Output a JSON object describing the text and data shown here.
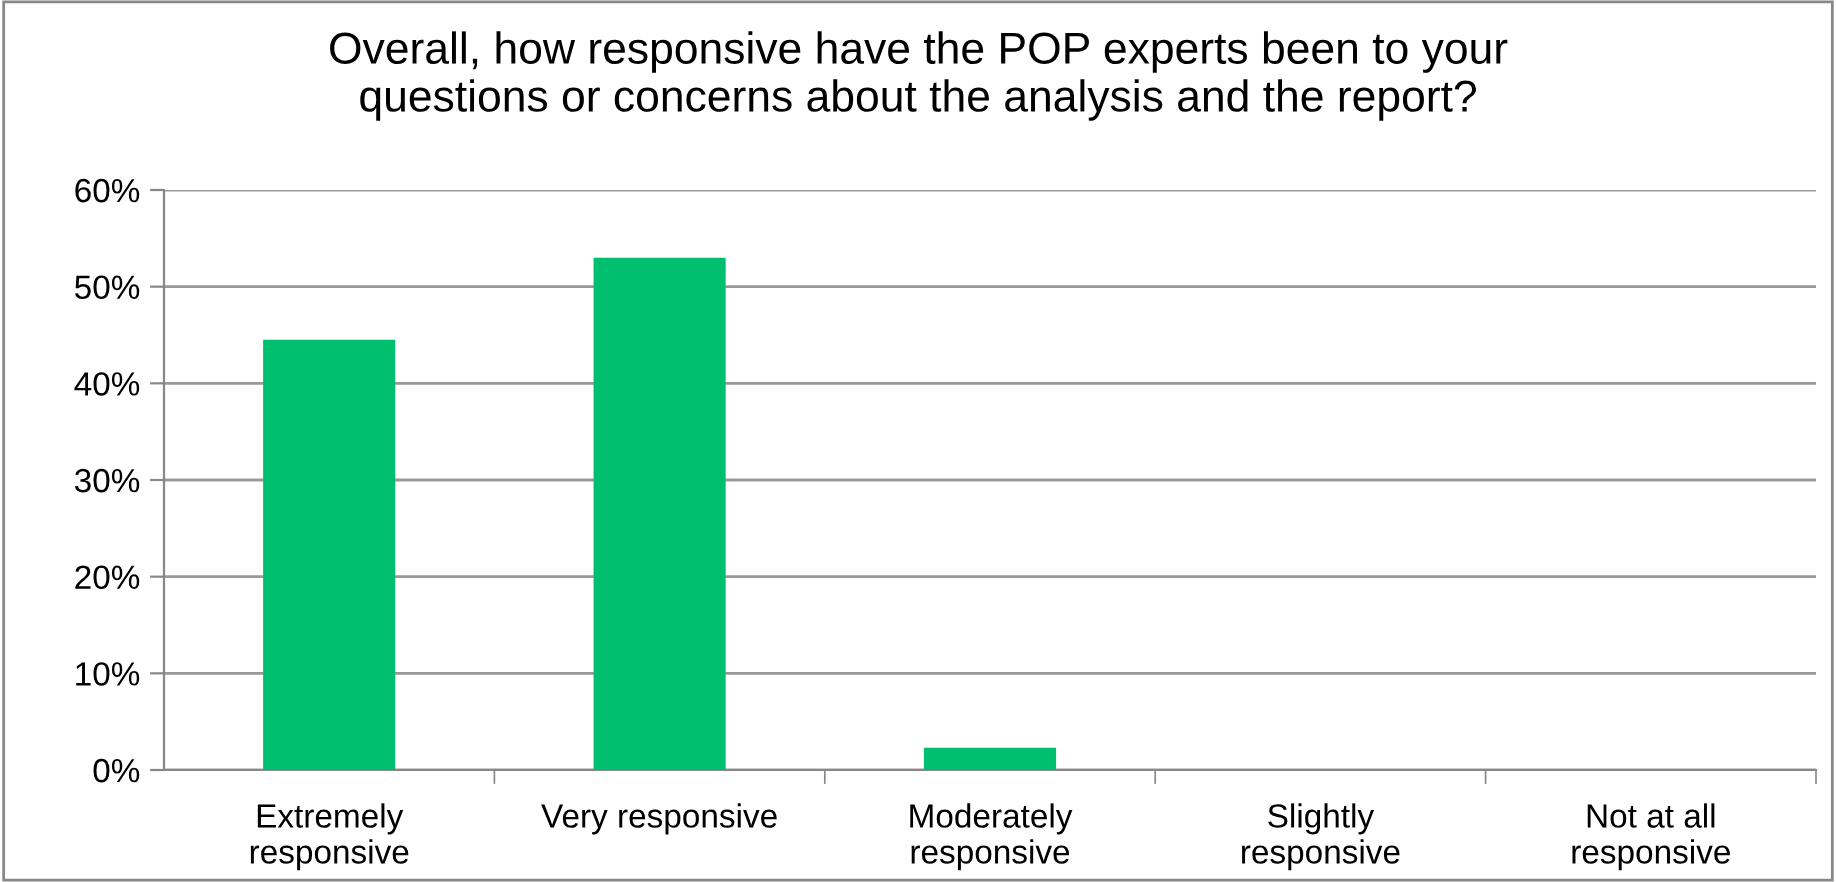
{
  "chart_data": {
    "type": "bar",
    "title": "Overall, how responsive have the POP experts been to your\nquestions or concerns about the analysis and the report?",
    "categories": [
      "Extremely\nresponsive",
      "Very responsive",
      "Moderately\nresponsive",
      "Slightly\nresponsive",
      "Not at all\nresponsive"
    ],
    "values": [
      44.5,
      53,
      2.3,
      0,
      0
    ],
    "color": "#00c070",
    "ylim": [
      0,
      60
    ],
    "yticks": [
      {
        "value": 0,
        "label": "0%"
      },
      {
        "value": 10,
        "label": "10%"
      },
      {
        "value": 20,
        "label": "20%"
      },
      {
        "value": 30,
        "label": "30%"
      },
      {
        "value": 40,
        "label": "40%"
      },
      {
        "value": 50,
        "label": "50%"
      },
      {
        "value": 60,
        "label": "60%"
      }
    ],
    "grid": "y"
  }
}
